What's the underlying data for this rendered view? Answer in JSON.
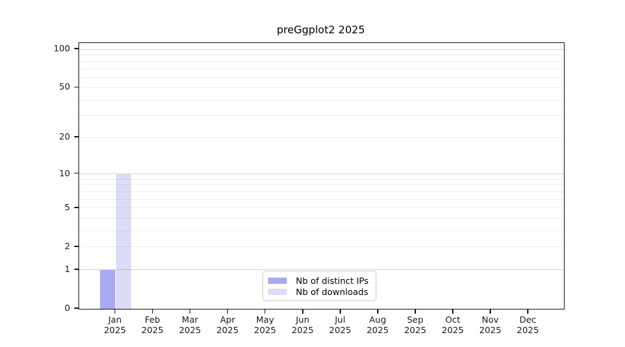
{
  "chart_data": {
    "type": "bar",
    "title": "preGgplot2 2025",
    "categories": [
      "Jan",
      "Feb",
      "Mar",
      "Apr",
      "May",
      "Jun",
      "Jul",
      "Aug",
      "Sep",
      "Oct",
      "Nov",
      "Dec"
    ],
    "category_year": "2025",
    "series": [
      {
        "name": "Nb of distinct IPs",
        "color": "#a9a9f2",
        "values": [
          1,
          0,
          0,
          0,
          0,
          0,
          0,
          0,
          0,
          0,
          0,
          0
        ]
      },
      {
        "name": "Nb of downloads",
        "color": "#dcdcf8",
        "values": [
          10,
          0,
          0,
          0,
          0,
          0,
          0,
          0,
          0,
          0,
          0,
          0
        ]
      }
    ],
    "yscale": "log1p",
    "ylim": [
      0,
      100
    ],
    "yticks": [
      0,
      1,
      2,
      5,
      10,
      20,
      50,
      100
    ],
    "major_gridlines": [
      1,
      10,
      100
    ],
    "minor_gridlines": [
      2,
      3,
      4,
      5,
      6,
      7,
      8,
      9,
      20,
      30,
      40,
      50,
      60,
      70,
      80,
      90
    ],
    "grid": true,
    "legend_position": "lower center",
    "colors": {
      "spine": "#1a1a1a",
      "major_grid": "#d4d4d4",
      "minor_grid": "#ededed",
      "legend_border": "#cccccc",
      "text": "#000000"
    }
  }
}
